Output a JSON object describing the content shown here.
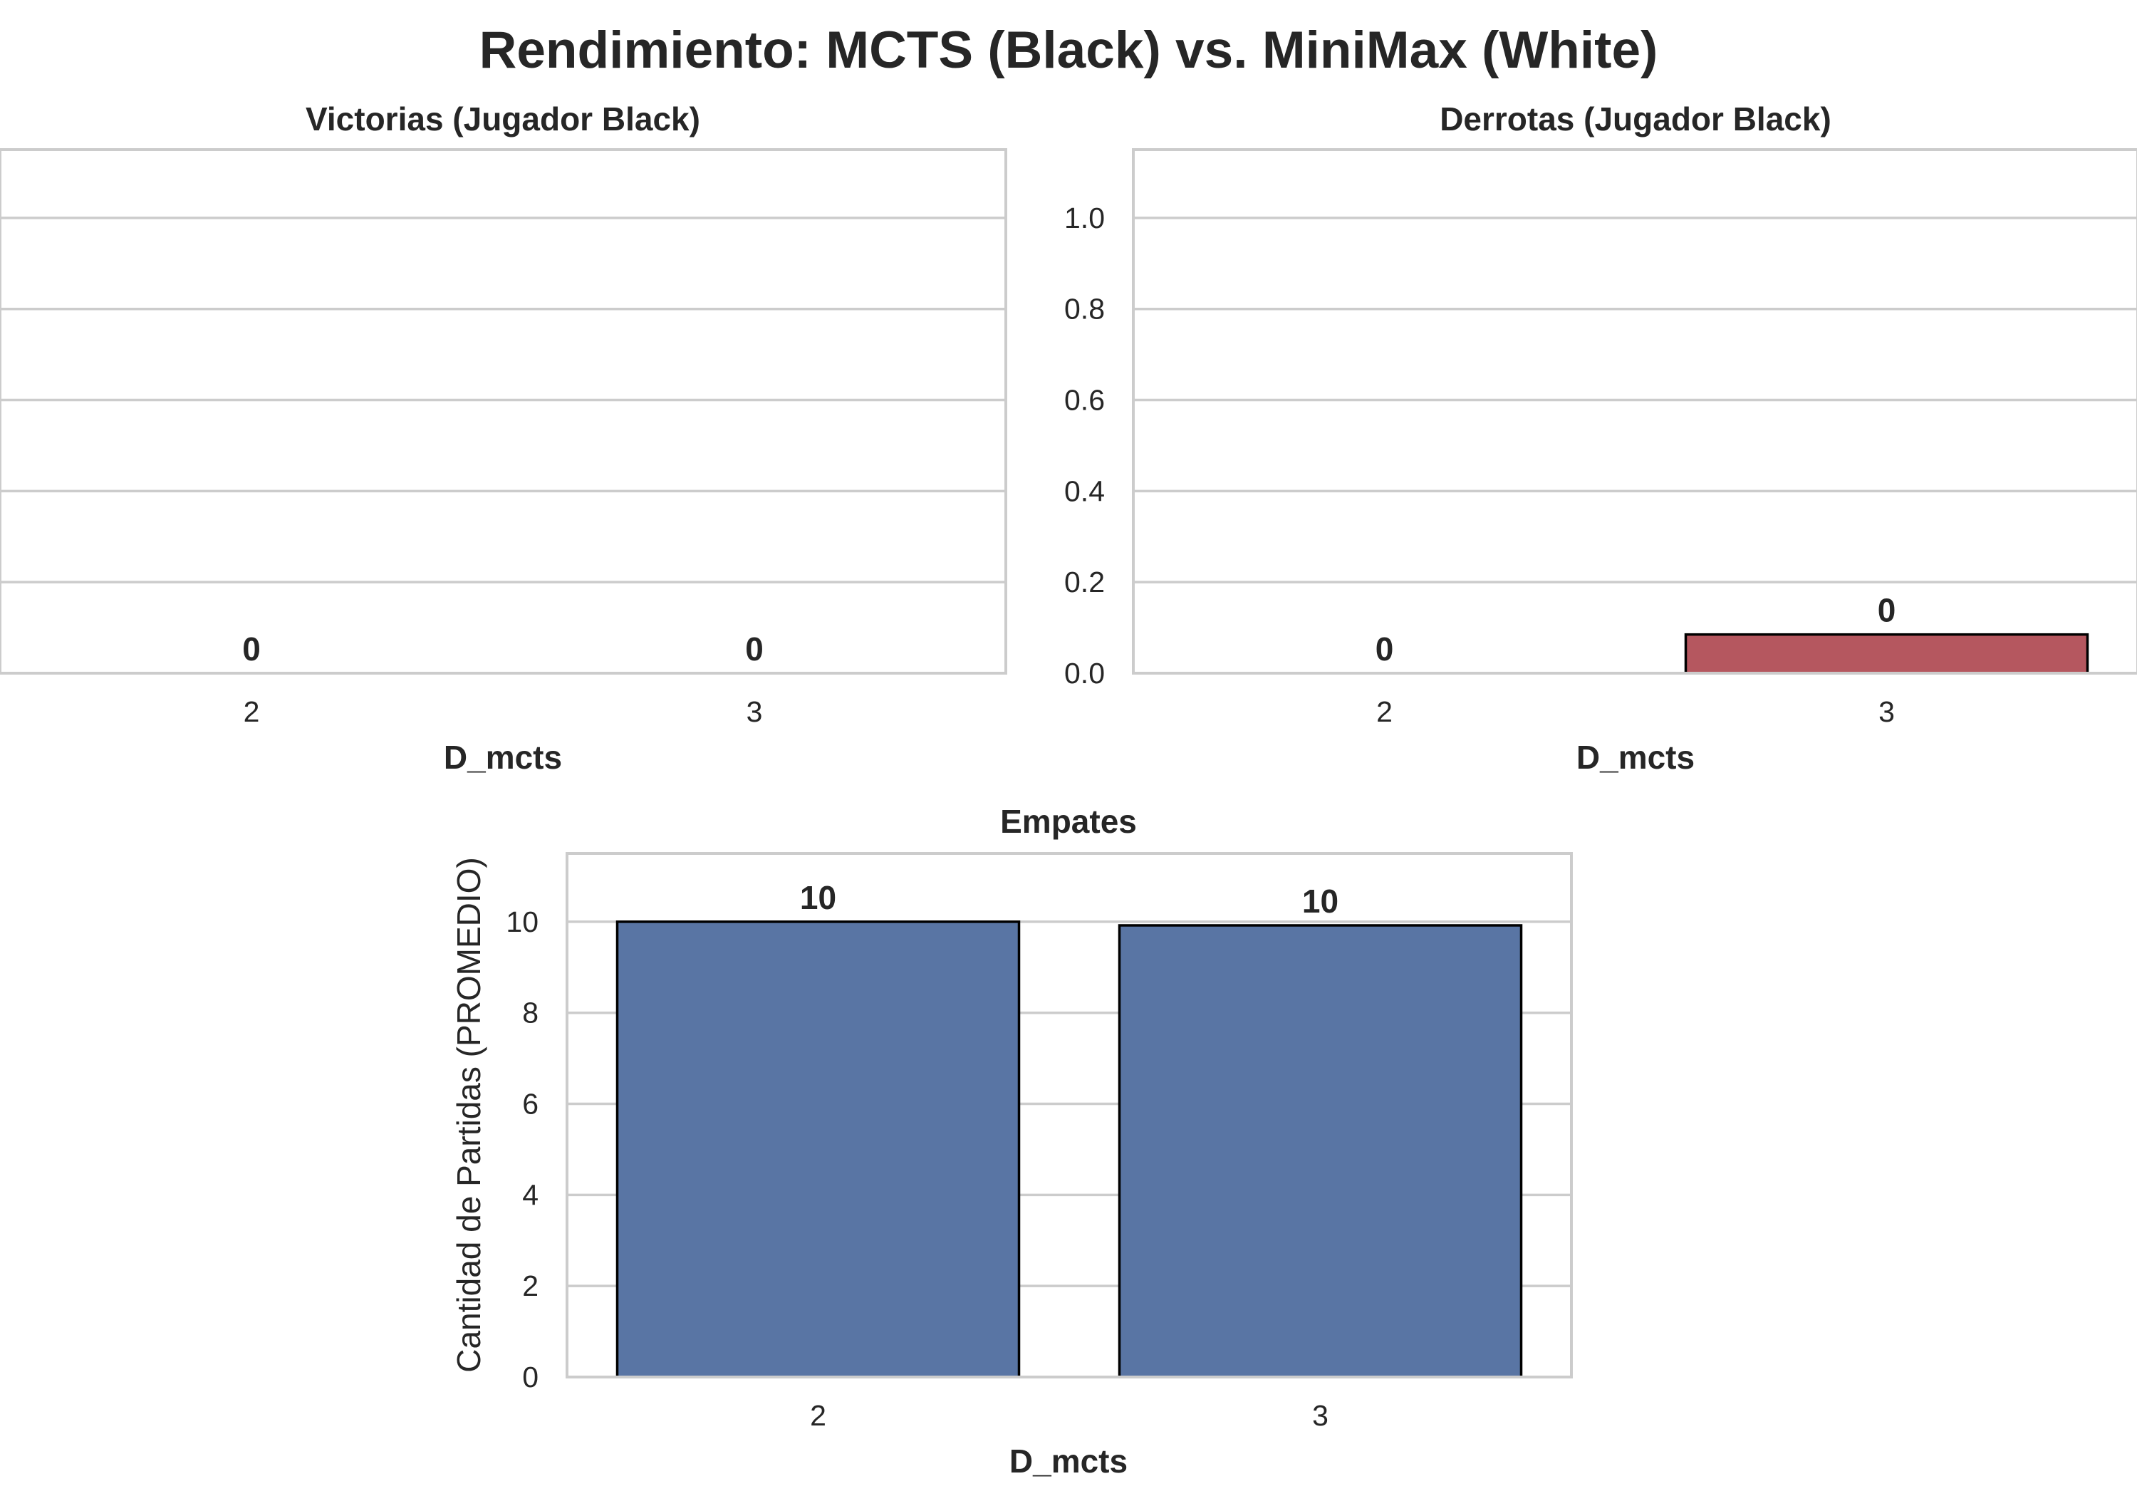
{
  "figure_title": "Rendimiento: MCTS (Black) vs. MiniMax (White)",
  "colors": {
    "victorias": "#4c72b0",
    "derrotas": "#b5575f",
    "empates": "#5975a4",
    "grid": "#cccccc",
    "text": "#262626"
  },
  "chart_data": [
    {
      "type": "bar",
      "title": "Victorias (Jugador Black)",
      "categories": [
        "2",
        "3"
      ],
      "values": [
        0,
        0
      ],
      "value_labels": [
        "0",
        "0"
      ],
      "xlabel": "D_mcts",
      "ylabel": "",
      "ylim": [
        0,
        1.15
      ],
      "yticks": [
        0.0,
        0.2,
        0.4,
        0.6,
        0.8,
        1.0
      ],
      "ytick_labels": [],
      "grid": "horizontal"
    },
    {
      "type": "bar",
      "title": "Derrotas (Jugador Black)",
      "categories": [
        "2",
        "3"
      ],
      "values": [
        0,
        0.085
      ],
      "value_labels": [
        "0",
        "0"
      ],
      "xlabel": "D_mcts",
      "ylabel": "",
      "ylim": [
        0,
        1.15
      ],
      "yticks": [
        0.0,
        0.2,
        0.4,
        0.6,
        0.8,
        1.0
      ],
      "ytick_labels": [
        "0.0",
        "0.2",
        "0.4",
        "0.6",
        "0.8",
        "1.0"
      ],
      "grid": "horizontal"
    },
    {
      "type": "bar",
      "title": "Empates",
      "categories": [
        "2",
        "3"
      ],
      "values": [
        10,
        9.92
      ],
      "value_labels": [
        "10",
        "10"
      ],
      "xlabel": "D_mcts",
      "ylabel": "Cantidad de Partidas (PROMEDIO)",
      "ylim": [
        0,
        11.5
      ],
      "yticks": [
        0,
        2,
        4,
        6,
        8,
        10
      ],
      "ytick_labels": [
        "0",
        "2",
        "4",
        "6",
        "8",
        "10"
      ],
      "grid": "horizontal"
    }
  ]
}
